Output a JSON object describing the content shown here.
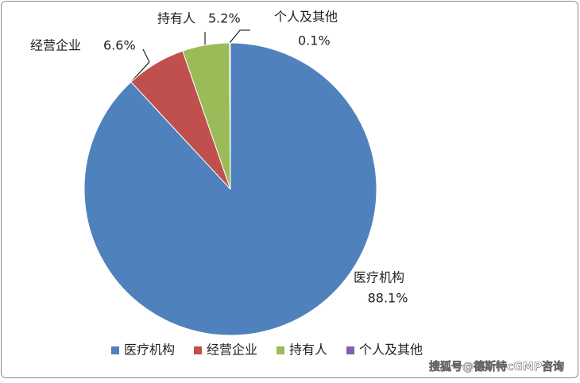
{
  "chart_data": {
    "type": "pie",
    "categories": [
      "医疗机构",
      "经营企业",
      "持有人",
      "个人及其他"
    ],
    "values": [
      88.1,
      6.6,
      5.2,
      0.1
    ],
    "value_labels": [
      "88.1%",
      "6.6%",
      "5.2%",
      "0.1%"
    ],
    "colors": [
      "#4f81bd",
      "#c0504d",
      "#9bbb59",
      "#8064a2"
    ],
    "legend": "bottom"
  },
  "watermark": "搜狐号@德斯特cGMP咨询"
}
